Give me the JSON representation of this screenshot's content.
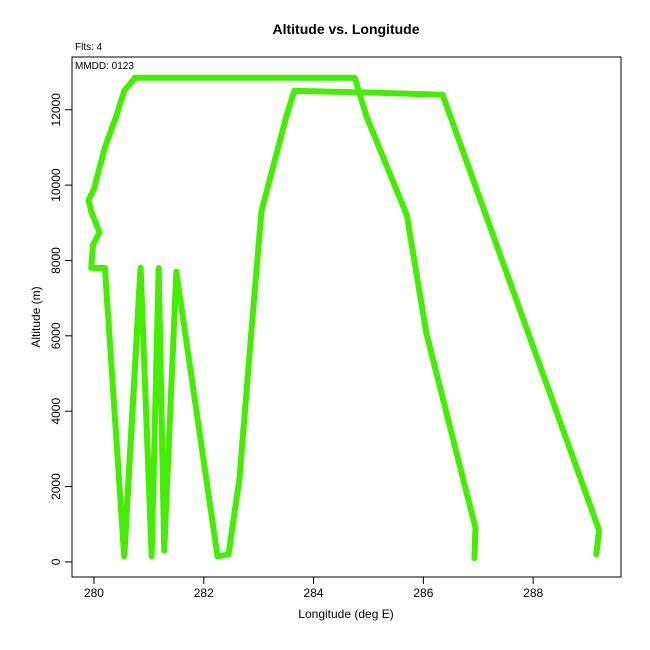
{
  "chart_data": {
    "type": "line",
    "title": "Altitude vs. Longitude",
    "xlabel": "Longitude (deg E)",
    "ylabel": "Altitude (m)",
    "xlim": [
      279.6,
      289.6
    ],
    "ylim": [
      -400,
      13400
    ],
    "x_ticks": [
      280,
      282,
      284,
      286,
      288
    ],
    "y_ticks": [
      0,
      2000,
      4000,
      6000,
      8000,
      10000,
      12000
    ],
    "annotations": {
      "flights": "Flts: 4",
      "date": "MMDD: 0123"
    },
    "grid": false,
    "color": "#44ee00",
    "series": [
      {
        "values": [
          [
            280.55,
            150
          ],
          [
            280.85,
            7800
          ],
          [
            281.05,
            150
          ],
          [
            281.18,
            7800
          ],
          [
            281.28,
            300
          ],
          [
            281.5,
            7700
          ],
          [
            282.25,
            150
          ],
          [
            282.45,
            200
          ],
          [
            282.65,
            2200
          ],
          [
            282.85,
            5800
          ],
          [
            283.05,
            9300
          ],
          [
            283.5,
            11800
          ],
          [
            283.65,
            12500
          ],
          [
            285.2,
            12450
          ],
          [
            286.35,
            12400
          ],
          [
            289.2,
            850
          ],
          [
            289.15,
            200
          ]
        ]
      },
      {
        "values": [
          [
            280.2,
            7800
          ],
          [
            279.95,
            7800
          ],
          [
            279.98,
            8400
          ],
          [
            280.1,
            8750
          ],
          [
            279.95,
            9300
          ],
          [
            279.9,
            9600
          ],
          [
            280.0,
            9900
          ],
          [
            280.2,
            11000
          ],
          [
            280.4,
            11800
          ],
          [
            280.55,
            12500
          ],
          [
            280.75,
            12850
          ],
          [
            282.5,
            12850
          ],
          [
            284.75,
            12850
          ],
          [
            284.97,
            11800
          ],
          [
            285.7,
            9200
          ],
          [
            286.05,
            6100
          ],
          [
            286.55,
            3200
          ],
          [
            286.95,
            900
          ],
          [
            286.93,
            100
          ]
        ]
      },
      {
        "values": [
          [
            280.2,
            7800
          ],
          [
            280.55,
            150
          ],
          [
            280.85,
            7800
          ]
        ]
      }
    ]
  }
}
